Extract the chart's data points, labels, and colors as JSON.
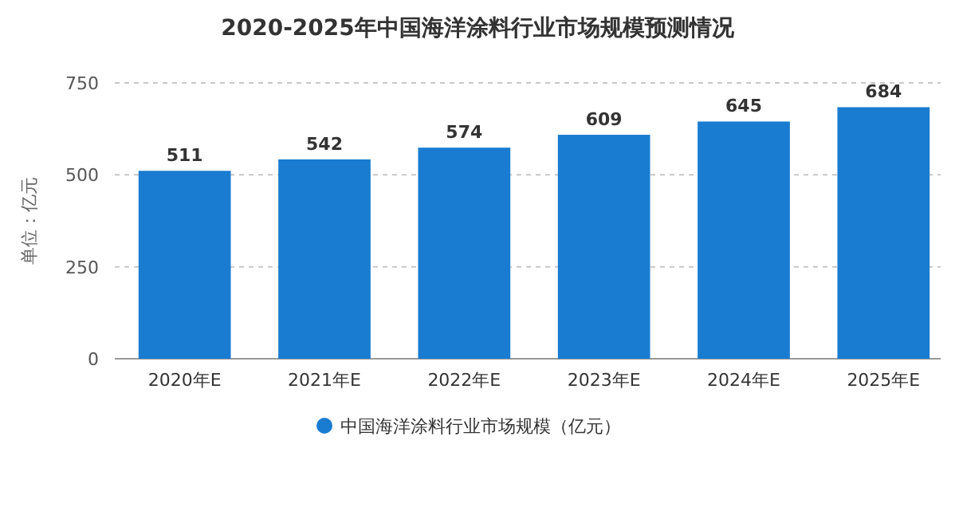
{
  "chart_data": {
    "type": "bar",
    "title": "2020-2025年中国海洋涂料行业市场规模预测情况",
    "ylabel": "单位：亿元",
    "categories": [
      "2020年E",
      "2021年E",
      "2022年E",
      "2023年E",
      "2024年E",
      "2025年E"
    ],
    "series": [
      {
        "name": "中国海洋涂料行业市场规模（亿元）",
        "color": "#1a7cd1",
        "values": [
          511,
          542,
          574,
          609,
          645,
          684
        ]
      }
    ],
    "ylim": [
      0,
      750
    ],
    "yticks": [
      0,
      250,
      500,
      750
    ],
    "grid": "y",
    "legend": "bottom",
    "data_labels": true
  }
}
